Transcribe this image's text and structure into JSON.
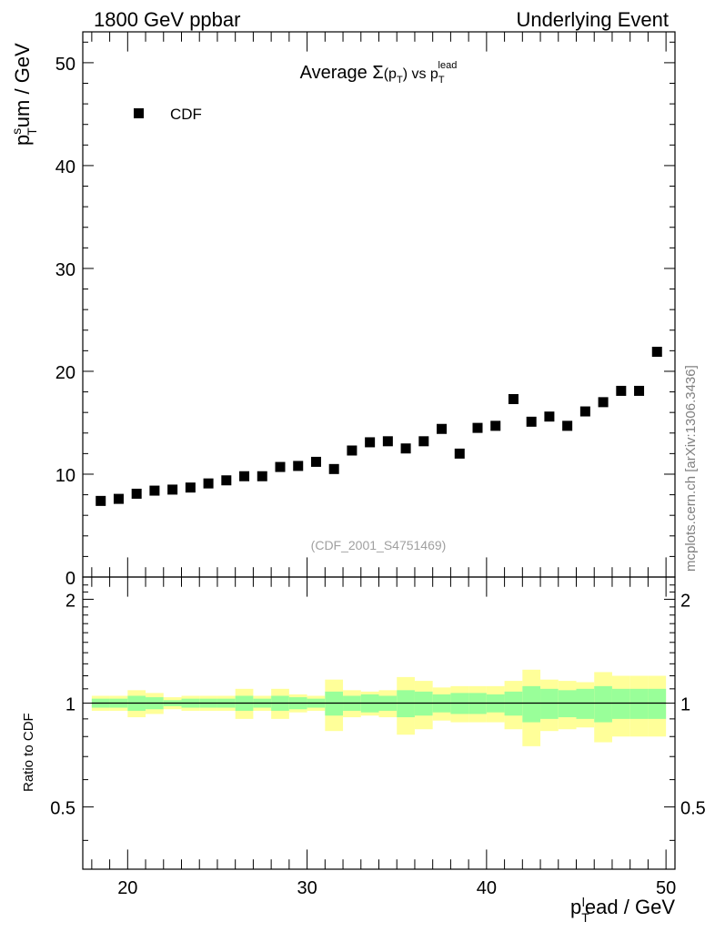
{
  "header": {
    "left": "1800 GeV ppbar",
    "right": "Underlying Event"
  },
  "side_label": "mcplots.cern.ch [arXiv:1306.3436]",
  "chart_data": [
    {
      "type": "scatter",
      "panel": "main",
      "title_prefix": "Average ",
      "title_sigma": "Σ",
      "title_paren_open": "(p",
      "title_paren_sub": "T",
      "title_paren_close": ")",
      "title_vs": " vs p",
      "title_sub": "T",
      "title_sup": "lead",
      "ylabel_main": "p",
      "ylabel_sup": "s",
      "ylabel_sub": "T",
      "ylabel_rest": "um / GeV",
      "xlim": [
        17.5,
        50.5
      ],
      "ylim": [
        0,
        53
      ],
      "yticks": [
        {
          "value": 0,
          "label": "0"
        },
        {
          "value": 10,
          "label": "10"
        },
        {
          "value": 20,
          "label": "20"
        },
        {
          "value": 30,
          "label": "30"
        },
        {
          "value": 40,
          "label": "40"
        },
        {
          "value": 50,
          "label": "50"
        }
      ],
      "legend_position": "top-left",
      "series": [
        {
          "name": "CDF",
          "x": [
            18.5,
            19.5,
            20.5,
            21.5,
            22.5,
            23.5,
            24.5,
            25.5,
            26.5,
            27.5,
            28.5,
            29.5,
            30.5,
            31.5,
            32.5,
            33.5,
            34.5,
            35.5,
            36.5,
            37.5,
            38.5,
            39.5,
            40.5,
            41.5,
            42.5,
            43.5,
            44.5,
            45.5,
            46.5,
            47.5,
            48.5,
            49.5
          ],
          "y": [
            7.4,
            7.6,
            8.1,
            8.4,
            8.5,
            8.7,
            9.1,
            9.4,
            9.8,
            9.8,
            10.7,
            10.8,
            11.2,
            10.5,
            12.3,
            13.1,
            13.2,
            12.5,
            13.2,
            14.4,
            12.0,
            14.5,
            14.7,
            17.3,
            15.1,
            15.6,
            14.7,
            16.1,
            17.0,
            18.1,
            18.1,
            21.9
          ]
        }
      ],
      "watermark": "(CDF_2001_S4751469)"
    },
    {
      "type": "area",
      "panel": "ratio",
      "ylabel": "Ratio to CDF",
      "xlabel_main": "p",
      "xlabel_sub": "T",
      "xlabel_sup": "l",
      "xlabel_rest": "ead / GeV",
      "xlim": [
        17.5,
        50.5
      ],
      "ylim": [
        0.33,
        2.32
      ],
      "xticks": [
        {
          "value": 20,
          "label": "20"
        },
        {
          "value": 30,
          "label": "30"
        },
        {
          "value": 40,
          "label": "40"
        },
        {
          "value": 50,
          "label": "50"
        }
      ],
      "yticks": [
        {
          "value": 0.5,
          "label": "0.5"
        },
        {
          "value": 1,
          "label": "1"
        },
        {
          "value": 2,
          "label": "2"
        }
      ],
      "reference_line": 1,
      "bins_low": [
        18,
        19,
        20,
        21,
        22,
        23,
        24,
        25,
        26,
        27,
        28,
        29,
        30,
        31,
        32,
        33,
        34,
        35,
        36,
        37,
        38,
        39,
        40,
        41,
        42,
        43,
        44,
        45,
        46,
        47,
        48,
        49
      ],
      "bins_high": [
        19,
        20,
        21,
        22,
        23,
        24,
        25,
        26,
        27,
        28,
        29,
        30,
        31,
        32,
        33,
        34,
        35,
        36,
        37,
        38,
        39,
        40,
        41,
        42,
        43,
        44,
        45,
        46,
        47,
        48,
        49,
        50
      ],
      "stat_band": [
        0.03,
        0.03,
        0.05,
        0.04,
        0.02,
        0.03,
        0.03,
        0.03,
        0.05,
        0.03,
        0.05,
        0.04,
        0.03,
        0.08,
        0.05,
        0.06,
        0.05,
        0.09,
        0.08,
        0.06,
        0.07,
        0.07,
        0.06,
        0.08,
        0.12,
        0.1,
        0.09,
        0.1,
        0.12,
        0.1,
        0.1,
        0.1
      ],
      "total_band": [
        0.05,
        0.05,
        0.09,
        0.07,
        0.04,
        0.05,
        0.05,
        0.05,
        0.1,
        0.05,
        0.1,
        0.06,
        0.05,
        0.17,
        0.09,
        0.08,
        0.09,
        0.19,
        0.16,
        0.11,
        0.12,
        0.12,
        0.12,
        0.16,
        0.25,
        0.17,
        0.16,
        0.15,
        0.23,
        0.2,
        0.2,
        0.2
      ],
      "stat_color": "#99ff99",
      "total_color": "#ffff99"
    }
  ]
}
